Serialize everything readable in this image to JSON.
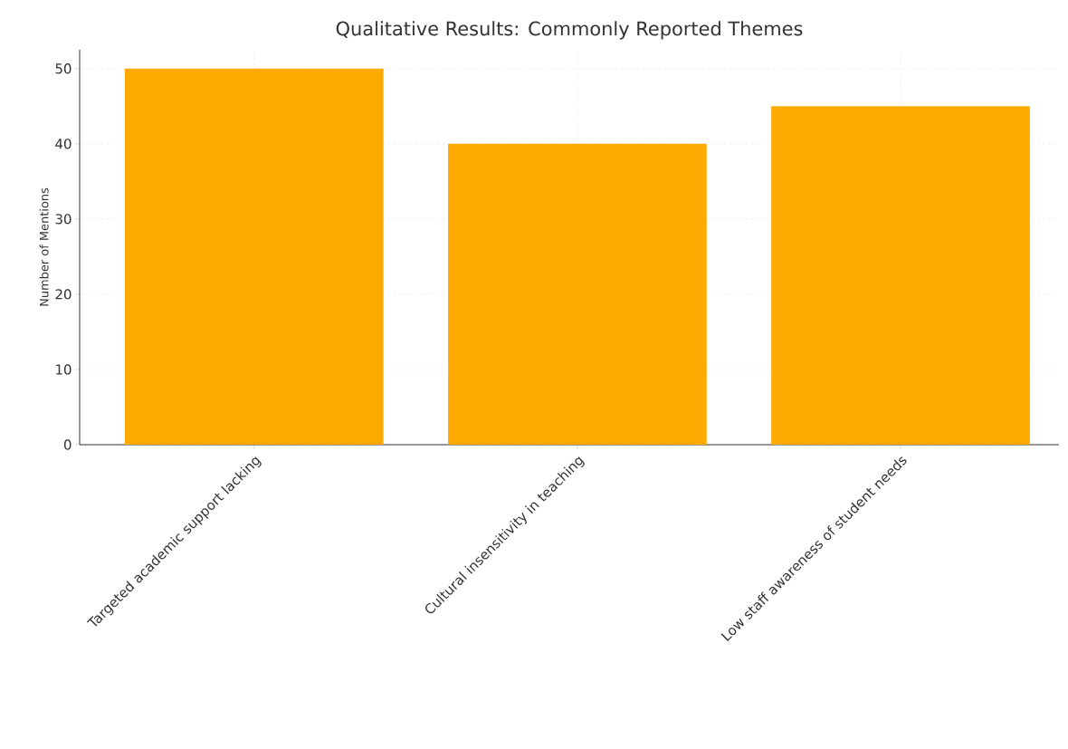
{
  "chart_data": {
    "type": "bar",
    "title": "Qualitative Results: Commonly Reported Themes",
    "ylabel": "Number of Mentions",
    "categories": [
      "Targeted academic support lacking",
      "Cultural insensitivity in teaching",
      "Low staff awareness of student needs"
    ],
    "values": [
      50,
      40,
      45
    ],
    "color": "#ffaa00",
    "ylim": [
      0,
      52.5
    ],
    "yticks": [
      0,
      10,
      20,
      30,
      40,
      50
    ],
    "grid": true
  }
}
